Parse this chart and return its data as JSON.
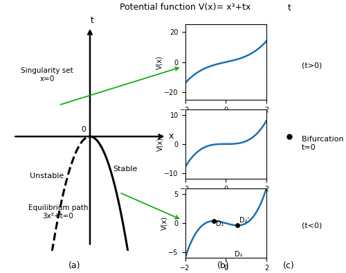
{
  "title": "Potential function V(x)= x³+tx",
  "panel_a_label": "(a)",
  "panel_b_label": "(b)",
  "panel_c_label": "(c)",
  "singularity_label": "Singularity set\nx=0",
  "unstable_label": "Unstable",
  "stable_label": "Stable",
  "equil_label": "Equilibrium path\n3x²+t=0",
  "t_gt0_label": "(t>0)",
  "t_lt0_label": "(t<0)",
  "bifurcation_label": "Bifurcation set\nt=0",
  "xlabel": "x",
  "t_axis_label": "t",
  "x_axis_label": "x",
  "bg_color": "#ffffff",
  "curve_color": "#1a6faf",
  "green_color": "#00aa00",
  "black_color": "#000000",
  "t1": 3,
  "t2": 0,
  "t3": -1,
  "sub1_ylim": [
    -25,
    25
  ],
  "sub2_ylim": [
    -12,
    12
  ],
  "sub3_ylim": [
    -6,
    6
  ],
  "sub1_yticks": [
    -20,
    0,
    20
  ],
  "sub2_yticks": [
    -10,
    0,
    10
  ],
  "sub3_yticks": [
    -5,
    0,
    5
  ]
}
